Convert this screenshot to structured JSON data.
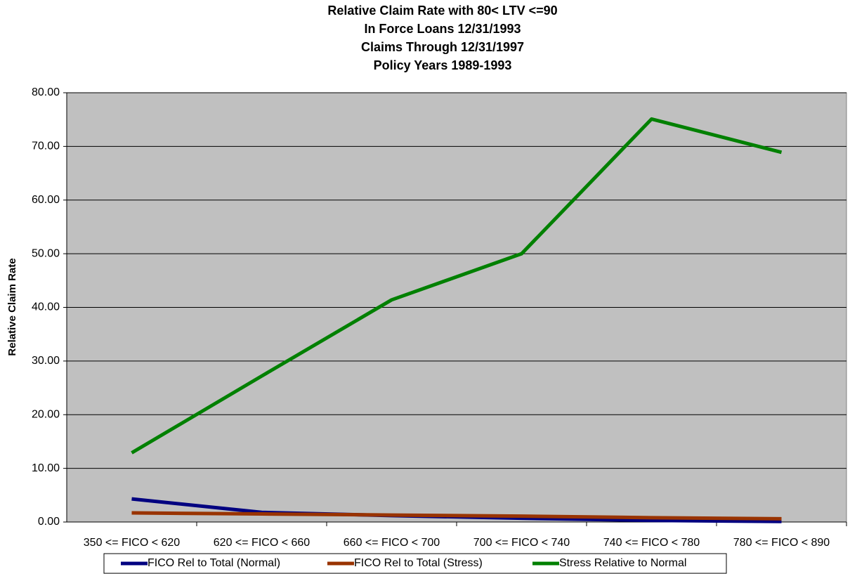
{
  "chart_data": {
    "type": "line",
    "title": [
      "Relative Claim Rate with 80< LTV <=90",
      "In Force Loans 12/31/1993",
      "Claims Through 12/31/1997",
      "Policy Years 1989-1993"
    ],
    "y_label": "Relative Claim Rate",
    "categories": [
      "350 <= FICO < 620",
      "620 <= FICO < 660",
      "660 <= FICO < 700",
      "700 <= FICO < 740",
      "740 <= FICO < 780",
      "780 <= FICO < 890"
    ],
    "series": [
      {
        "name": "FICO Rel to Total (Normal)",
        "color": "#000080",
        "values": [
          4.3,
          1.8,
          1.2,
          0.7,
          0.3,
          0.1
        ]
      },
      {
        "name": "FICO Rel to Total (Stress)",
        "color": "#993300",
        "values": [
          1.7,
          1.5,
          1.3,
          1.1,
          0.8,
          0.6
        ]
      },
      {
        "name": "Stress Relative to Normal",
        "color": "#008000",
        "values": [
          12.9,
          27.2,
          41.4,
          50.0,
          75.1,
          68.9
        ]
      }
    ],
    "ylim": [
      0,
      80
    ],
    "yticks": [
      {
        "value": 0,
        "label": "0.00"
      },
      {
        "value": 10,
        "label": "10.00"
      },
      {
        "value": 20,
        "label": "20.00"
      },
      {
        "value": 30,
        "label": "30.00"
      },
      {
        "value": 40,
        "label": "40.00"
      },
      {
        "value": 50,
        "label": "50.00"
      },
      {
        "value": 60,
        "label": "60.00"
      },
      {
        "value": 70,
        "label": "70.00"
      },
      {
        "value": 80,
        "label": "80.00"
      }
    ],
    "grid": true
  }
}
